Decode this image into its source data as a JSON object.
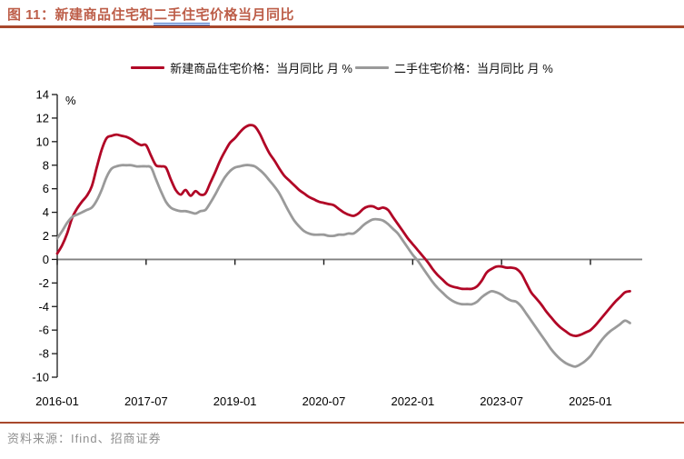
{
  "header": {
    "title_prefix": "图 11：新建商品住宅和",
    "title_underlined": "二手住宅",
    "title_suffix": "价格当月同比"
  },
  "footer": {
    "source_label": "资料来源：Ifind、招商证券"
  },
  "colors": {
    "title_text": "#bd5e49",
    "accent_rule": "#a8482c",
    "underline_blue": "#3b6fc9",
    "source_text": "#8f8f8f",
    "axis_line": "#1a1a1a",
    "zero_line": "#808080"
  },
  "chart_data": {
    "type": "line",
    "unit_label": "%",
    "x_start": "2016-01",
    "x_end": "2025-09",
    "x_frequency": "monthly",
    "x_tick_labels": [
      "2016-01",
      "2017-07",
      "2019-01",
      "2020-07",
      "2022-01",
      "2023-07",
      "2025-01"
    ],
    "x_tick_month_index": [
      0,
      18,
      36,
      54,
      72,
      90,
      108
    ],
    "y_ticks": [
      14,
      12,
      10,
      8,
      6,
      4,
      2,
      0,
      -2,
      -4,
      -6,
      -8,
      -10
    ],
    "ylim": [
      -10,
      14
    ],
    "grid": "zero-line-only",
    "legend_position": "top-center",
    "series": [
      {
        "name": "新建商品住宅价格：当月同比 月 %",
        "color": "#b10626",
        "values": [
          0.5,
          1.2,
          2.2,
          3.5,
          4.3,
          4.9,
          5.4,
          6.2,
          7.8,
          9.3,
          10.3,
          10.5,
          10.6,
          10.5,
          10.4,
          10.2,
          9.9,
          9.7,
          9.7,
          8.8,
          8.0,
          7.9,
          7.8,
          6.8,
          5.9,
          5.5,
          5.9,
          5.4,
          5.8,
          5.5,
          5.6,
          6.5,
          7.4,
          8.4,
          9.2,
          9.9,
          10.3,
          10.8,
          11.2,
          11.4,
          11.3,
          10.7,
          9.8,
          9.0,
          8.4,
          7.7,
          7.1,
          6.7,
          6.3,
          5.9,
          5.6,
          5.3,
          5.1,
          4.9,
          4.8,
          4.7,
          4.6,
          4.3,
          4.0,
          3.8,
          3.7,
          3.9,
          4.3,
          4.5,
          4.5,
          4.3,
          4.4,
          4.2,
          3.6,
          3.0,
          2.4,
          1.8,
          1.3,
          0.8,
          0.3,
          -0.2,
          -0.8,
          -1.3,
          -1.7,
          -2.1,
          -2.3,
          -2.4,
          -2.5,
          -2.5,
          -2.5,
          -2.3,
          -1.8,
          -1.1,
          -0.8,
          -0.6,
          -0.6,
          -0.7,
          -0.7,
          -0.8,
          -1.2,
          -2.0,
          -2.8,
          -3.3,
          -3.8,
          -4.4,
          -4.9,
          -5.4,
          -5.8,
          -6.1,
          -6.4,
          -6.5,
          -6.4,
          -6.2,
          -6.0,
          -5.6,
          -5.1,
          -4.6,
          -4.1,
          -3.6,
          -3.2,
          -2.8,
          -2.7
        ]
      },
      {
        "name": "二手住宅价格：当月同比 月 %",
        "color": "#9a9a9a",
        "values": [
          1.8,
          2.4,
          3.1,
          3.6,
          3.8,
          4.0,
          4.2,
          4.4,
          5.0,
          5.9,
          7.0,
          7.7,
          7.9,
          8.0,
          8.0,
          8.0,
          7.9,
          7.9,
          7.9,
          7.8,
          6.8,
          5.8,
          4.9,
          4.4,
          4.2,
          4.1,
          4.1,
          4.0,
          3.9,
          4.1,
          4.2,
          4.8,
          5.5,
          6.3,
          7.0,
          7.5,
          7.8,
          7.9,
          8.0,
          8.0,
          7.9,
          7.6,
          7.2,
          6.7,
          6.2,
          5.6,
          4.8,
          4.0,
          3.3,
          2.8,
          2.4,
          2.2,
          2.1,
          2.1,
          2.1,
          2.0,
          2.0,
          2.1,
          2.1,
          2.2,
          2.2,
          2.5,
          2.9,
          3.2,
          3.4,
          3.4,
          3.3,
          3.0,
          2.6,
          2.2,
          1.6,
          1.0,
          0.4,
          -0.1,
          -0.7,
          -1.3,
          -1.9,
          -2.4,
          -2.8,
          -3.2,
          -3.5,
          -3.7,
          -3.8,
          -3.8,
          -3.8,
          -3.6,
          -3.2,
          -2.9,
          -2.7,
          -2.8,
          -3.0,
          -3.3,
          -3.5,
          -3.6,
          -4.0,
          -4.6,
          -5.2,
          -5.8,
          -6.4,
          -7.0,
          -7.6,
          -8.1,
          -8.5,
          -8.8,
          -9.0,
          -9.1,
          -8.9,
          -8.6,
          -8.2,
          -7.6,
          -7.0,
          -6.5,
          -6.1,
          -5.8,
          -5.5,
          -5.2,
          -5.4
        ]
      }
    ]
  }
}
